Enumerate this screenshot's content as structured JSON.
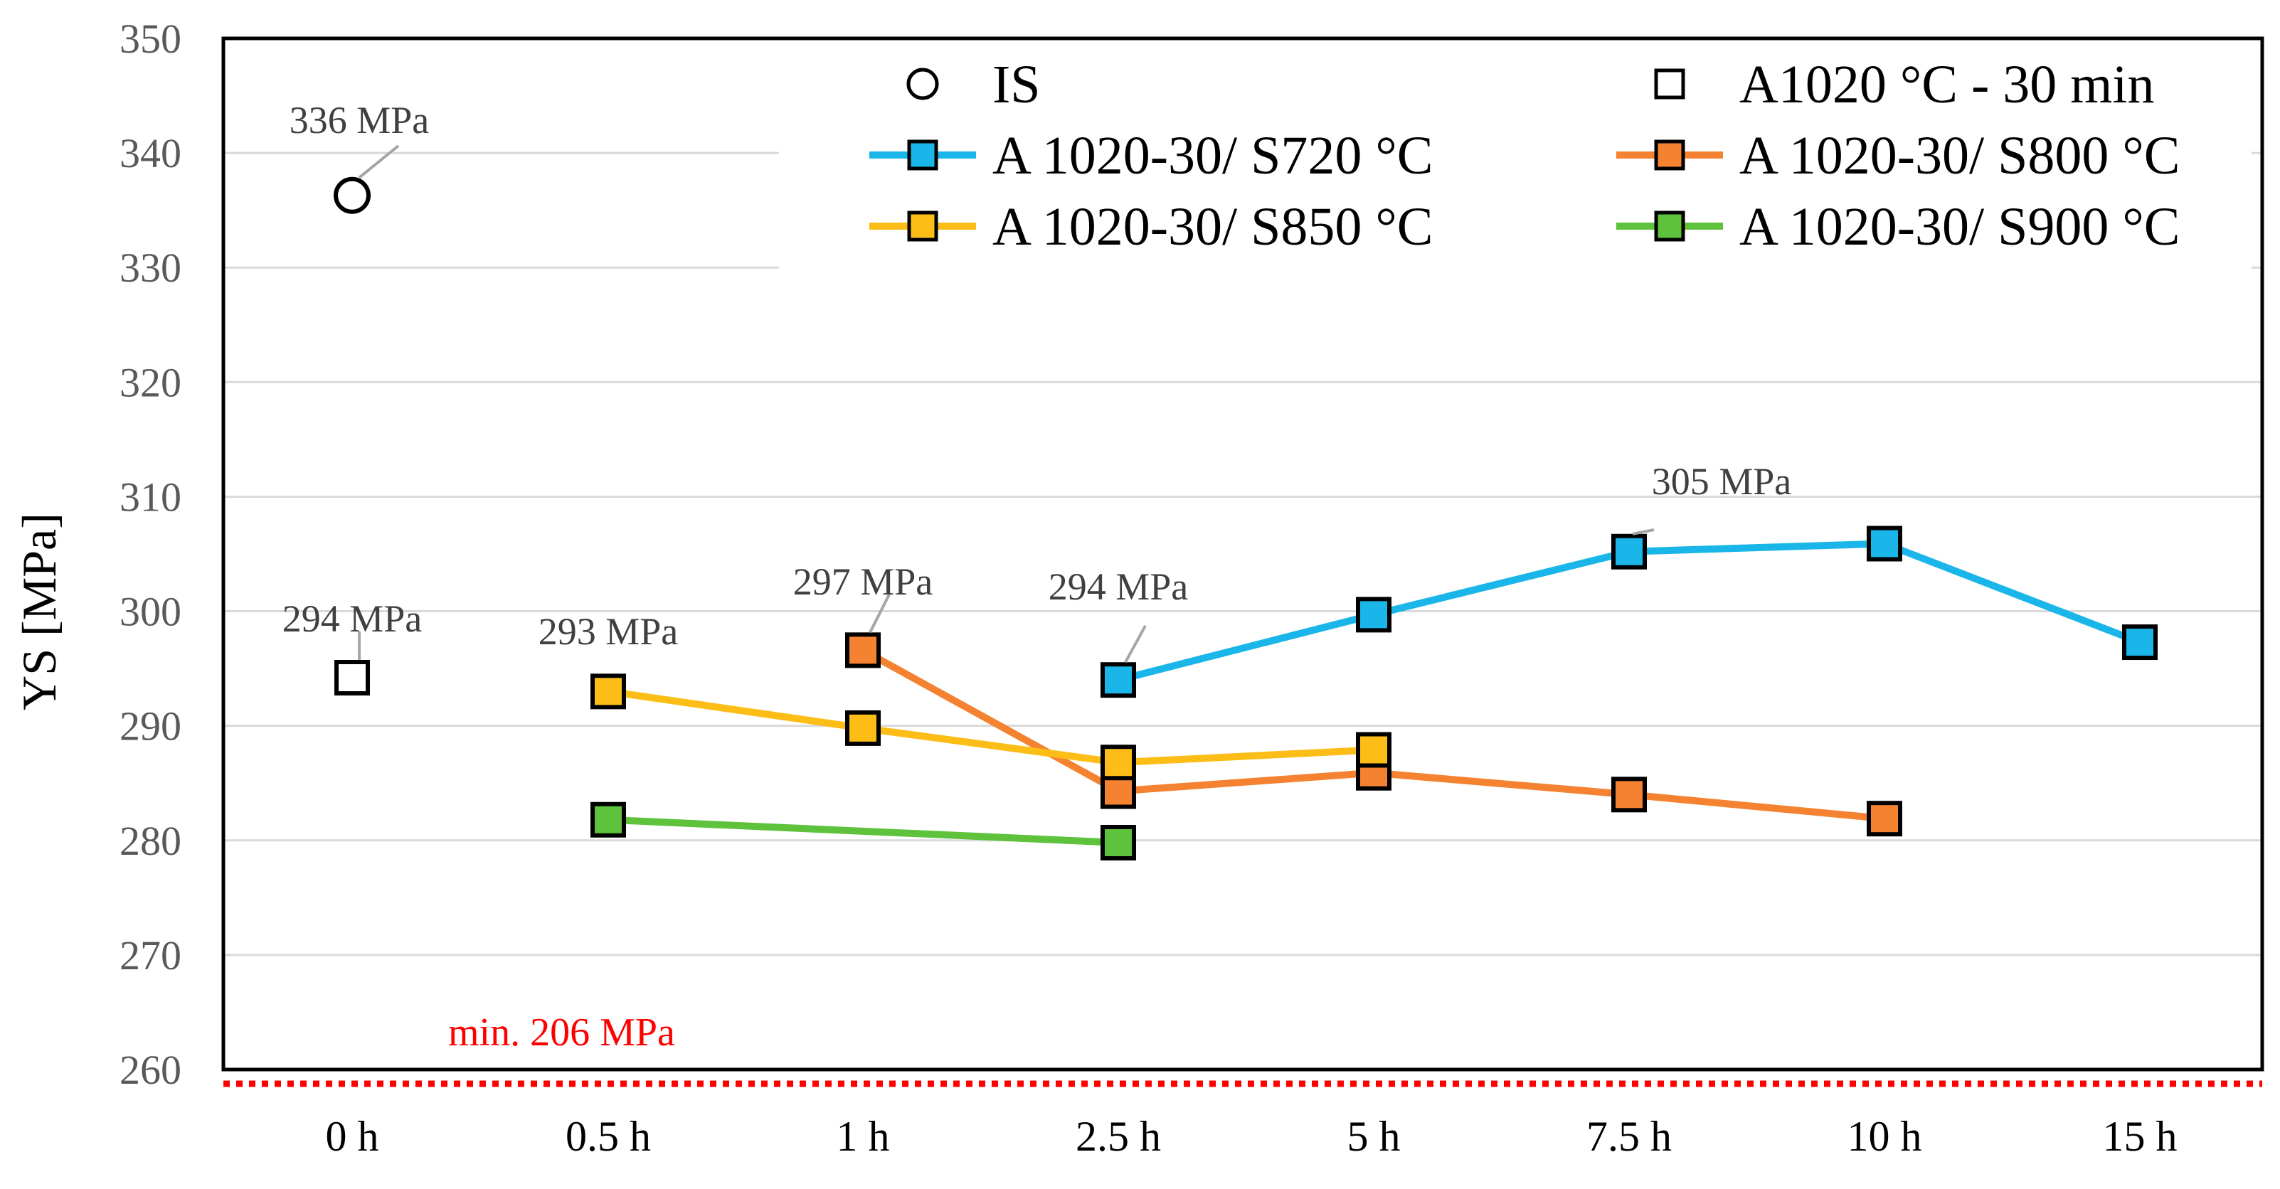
{
  "chart_data": {
    "type": "line",
    "title": "",
    "xlabel": "",
    "ylabel": "YS [MPa]",
    "ylim": [
      260,
      350
    ],
    "yticks": [
      260,
      270,
      280,
      290,
      300,
      310,
      320,
      330,
      340,
      350
    ],
    "categories": [
      "0 h",
      "0.5 h",
      "1 h",
      "2.5 h",
      "5 h",
      "7.5 h",
      "10 h",
      "15 h"
    ],
    "grid": "horizontal",
    "legend_position": "top",
    "series": [
      {
        "name": "IS",
        "marker": "circle",
        "line": false,
        "color": "#000000",
        "fill": "#ffffff",
        "values": [
          336.3,
          null,
          null,
          null,
          null,
          null,
          null,
          null
        ]
      },
      {
        "name": "A1020 °C - 30 min",
        "marker": "square",
        "line": false,
        "color": "#000000",
        "fill": "#ffffff",
        "values": [
          294.2,
          null,
          null,
          null,
          null,
          null,
          null,
          null
        ]
      },
      {
        "name": "A 1020-30/ S720 °C",
        "marker": "square",
        "line": true,
        "color": "#1ab6e9",
        "fill": "#1ab6e9",
        "values": [
          null,
          null,
          null,
          294.0,
          299.7,
          305.2,
          305.9,
          297.3
        ]
      },
      {
        "name": "A 1020-30/ S800 °C",
        "marker": "square",
        "line": true,
        "color": "#f58231",
        "fill": "#f58231",
        "values": [
          null,
          null,
          296.6,
          284.3,
          285.9,
          284.0,
          281.9,
          null
        ]
      },
      {
        "name": "A 1020-30/ S850 °C",
        "marker": "square",
        "line": true,
        "color": "#fbbd16",
        "fill": "#fbbd16",
        "values": [
          null,
          293.0,
          289.8,
          286.8,
          287.9,
          null,
          null,
          null
        ]
      },
      {
        "name": "A 1020-30/ S900 °C",
        "marker": "square",
        "line": true,
        "color": "#5ec23c",
        "fill": "#5ec23c",
        "values": [
          null,
          281.8,
          null,
          279.8,
          null,
          null,
          null,
          null
        ]
      }
    ],
    "annotations": [
      {
        "text": "336 MPa",
        "category": "0 h",
        "value": 336.3,
        "label_anchor": "above"
      },
      {
        "text": "294 MPa",
        "category": "0 h",
        "value": 294.2,
        "label_anchor": "above"
      },
      {
        "text": "293 MPa",
        "category": "0.5 h",
        "value": 293.0,
        "label_anchor": "above"
      },
      {
        "text": "297 MPa",
        "category": "1 h",
        "value": 296.6,
        "label_anchor": "above"
      },
      {
        "text": "294 MPa",
        "category": "2.5 h",
        "value": 294.0,
        "label_anchor": "above"
      },
      {
        "text": "305 MPa",
        "category": "7.5 h",
        "value": 305.2,
        "label_anchor": "upper-right"
      }
    ],
    "reference_line": {
      "text": "min. 206 MPa",
      "color": "#ff0000",
      "style": "dotted"
    }
  }
}
